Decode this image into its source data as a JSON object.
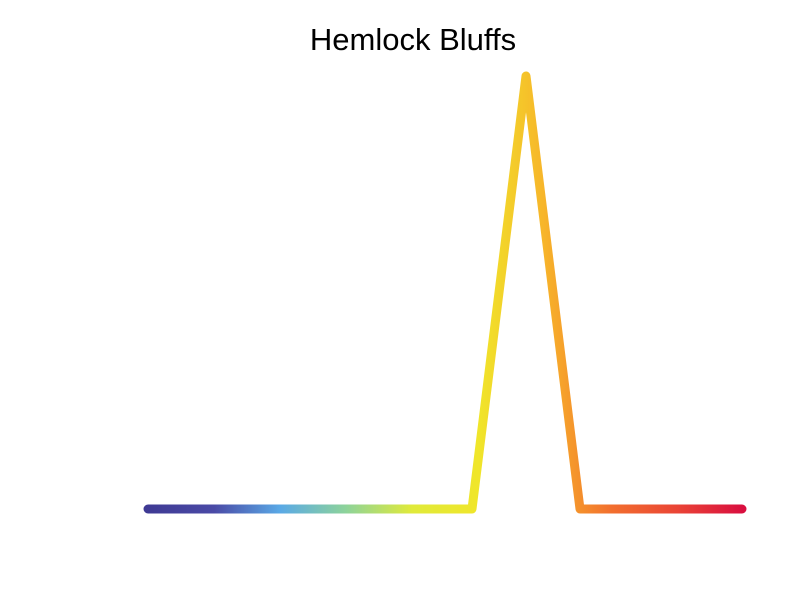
{
  "chart_data": {
    "type": "line",
    "title": "Hemlock Bluffs",
    "xlabel": "",
    "ylabel": "",
    "grid": false,
    "axes_visible": false,
    "legend": "none",
    "x": [
      0,
      1,
      2,
      3,
      4,
      5,
      6,
      7,
      8,
      9,
      10,
      11
    ],
    "series": [
      {
        "values": [
          0,
          0,
          0,
          0,
          0,
          0,
          0,
          1,
          0,
          0,
          0,
          0
        ]
      }
    ],
    "xlim": [
      0,
      11
    ],
    "ylim": [
      0,
      1
    ],
    "line_gradient": [
      "#3f3a94",
      "#4a4aa6",
      "#5aa9e6",
      "#8dd39a",
      "#e0ea3a",
      "#f0e62a",
      "#f7b52a",
      "#f2702e",
      "#ea4535",
      "#d90f3f"
    ]
  }
}
